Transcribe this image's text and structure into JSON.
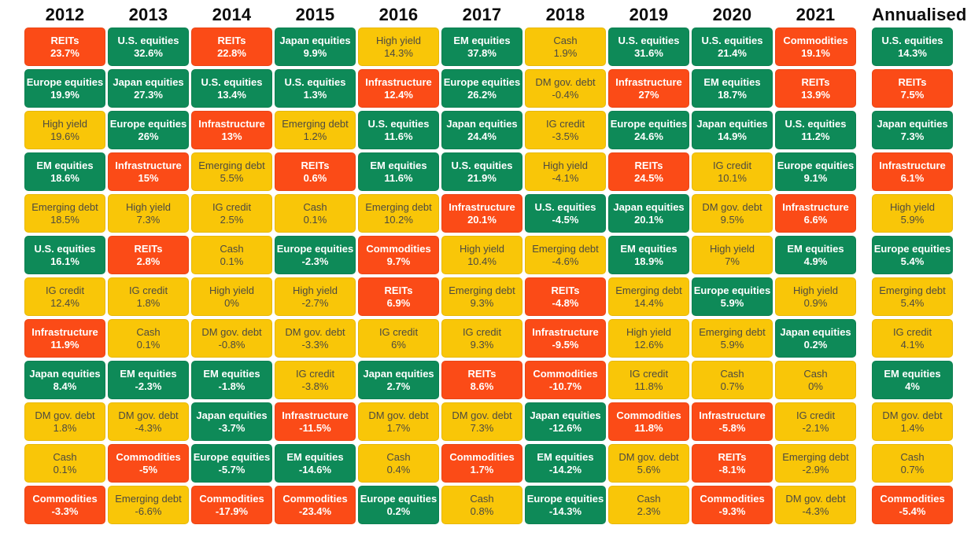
{
  "chart_data": {
    "type": "table",
    "description": "Asset class total returns by calendar year, ranked best to worst within each column",
    "palette": {
      "green": "#0E8A58",
      "yellow": "#F9C608",
      "orange": "#FB4B17",
      "dark_text": "#4D4A41",
      "header_text": "#0D0D0D"
    },
    "asset_categories": {
      "U.S. equities": "green",
      "Europe equities": "green",
      "Japan equities": "green",
      "EM equities": "green",
      "High yield": "yellow",
      "Emerging debt": "yellow",
      "IG credit": "yellow",
      "DM gov. debt": "yellow",
      "Cash": "yellow",
      "REITs": "orange",
      "Infrastructure": "orange",
      "Commodities": "orange"
    },
    "columns": [
      {
        "label": "2012",
        "annualised": false,
        "cells": [
          {
            "name": "REITs",
            "value": "23.7%"
          },
          {
            "name": "Europe equities",
            "value": "19.9%"
          },
          {
            "name": "High yield",
            "value": "19.6%"
          },
          {
            "name": "EM equities",
            "value": "18.6%"
          },
          {
            "name": "Emerging debt",
            "value": "18.5%"
          },
          {
            "name": "U.S. equities",
            "value": "16.1%"
          },
          {
            "name": "IG credit",
            "value": "12.4%"
          },
          {
            "name": "Infrastructure",
            "value": "11.9%"
          },
          {
            "name": "Japan equities",
            "value": "8.4%"
          },
          {
            "name": "DM gov. debt",
            "value": "1.8%"
          },
          {
            "name": "Cash",
            "value": "0.1%"
          },
          {
            "name": "Commodities",
            "value": "-3.3%"
          }
        ]
      },
      {
        "label": "2013",
        "annualised": false,
        "cells": [
          {
            "name": "U.S. equities",
            "value": "32.6%"
          },
          {
            "name": "Japan equities",
            "value": "27.3%"
          },
          {
            "name": "Europe equities",
            "value": "26%"
          },
          {
            "name": "Infrastructure",
            "value": "15%"
          },
          {
            "name": "High yield",
            "value": "7.3%"
          },
          {
            "name": "REITs",
            "value": "2.8%"
          },
          {
            "name": "IG credit",
            "value": "1.8%"
          },
          {
            "name": "Cash",
            "value": "0.1%"
          },
          {
            "name": "EM equities",
            "value": "-2.3%"
          },
          {
            "name": "DM gov. debt",
            "value": "-4.3%"
          },
          {
            "name": "Commodities",
            "value": "-5%"
          },
          {
            "name": "Emerging debt",
            "value": "-6.6%"
          }
        ]
      },
      {
        "label": "2014",
        "annualised": false,
        "cells": [
          {
            "name": "REITs",
            "value": "22.8%"
          },
          {
            "name": "U.S. equities",
            "value": "13.4%"
          },
          {
            "name": "Infrastructure",
            "value": "13%"
          },
          {
            "name": "Emerging debt",
            "value": "5.5%"
          },
          {
            "name": "IG credit",
            "value": "2.5%"
          },
          {
            "name": "Cash",
            "value": "0.1%"
          },
          {
            "name": "High yield",
            "value": "0%"
          },
          {
            "name": "DM gov. debt",
            "value": "-0.8%"
          },
          {
            "name": "EM equities",
            "value": "-1.8%"
          },
          {
            "name": "Japan equities",
            "value": "-3.7%"
          },
          {
            "name": "Europe equities",
            "value": "-5.7%"
          },
          {
            "name": "Commodities",
            "value": "-17.9%"
          }
        ]
      },
      {
        "label": "2015",
        "annualised": false,
        "cells": [
          {
            "name": "Japan equities",
            "value": "9.9%"
          },
          {
            "name": "U.S. equities",
            "value": "1.3%"
          },
          {
            "name": "Emerging debt",
            "value": "1.2%"
          },
          {
            "name": "REITs",
            "value": "0.6%"
          },
          {
            "name": "Cash",
            "value": "0.1%"
          },
          {
            "name": "Europe equities",
            "value": "-2.3%"
          },
          {
            "name": "High yield",
            "value": "-2.7%"
          },
          {
            "name": "DM gov. debt",
            "value": "-3.3%"
          },
          {
            "name": "IG credit",
            "value": "-3.8%"
          },
          {
            "name": "Infrastructure",
            "value": "-11.5%"
          },
          {
            "name": "EM equities",
            "value": "-14.6%"
          },
          {
            "name": "Commodities",
            "value": "-23.4%"
          }
        ]
      },
      {
        "label": "2016",
        "annualised": false,
        "cells": [
          {
            "name": "High yield",
            "value": "14.3%"
          },
          {
            "name": "Infrastructure",
            "value": "12.4%"
          },
          {
            "name": "U.S. equities",
            "value": "11.6%"
          },
          {
            "name": "EM equities",
            "value": "11.6%"
          },
          {
            "name": "Emerging debt",
            "value": "10.2%"
          },
          {
            "name": "Commodities",
            "value": "9.7%"
          },
          {
            "name": "REITs",
            "value": "6.9%"
          },
          {
            "name": "IG credit",
            "value": "6%"
          },
          {
            "name": "Japan equities",
            "value": "2.7%"
          },
          {
            "name": "DM gov. debt",
            "value": "1.7%"
          },
          {
            "name": "Cash",
            "value": "0.4%"
          },
          {
            "name": "Europe equities",
            "value": "0.2%"
          }
        ]
      },
      {
        "label": "2017",
        "annualised": false,
        "cells": [
          {
            "name": "EM equities",
            "value": "37.8%"
          },
          {
            "name": "Europe equities",
            "value": "26.2%"
          },
          {
            "name": "Japan equities",
            "value": "24.4%"
          },
          {
            "name": "U.S. equities",
            "value": "21.9%"
          },
          {
            "name": "Infrastructure",
            "value": "20.1%"
          },
          {
            "name": "High yield",
            "value": "10.4%"
          },
          {
            "name": "Emerging debt",
            "value": "9.3%"
          },
          {
            "name": "IG credit",
            "value": "9.3%"
          },
          {
            "name": "REITs",
            "value": "8.6%"
          },
          {
            "name": "DM gov. debt",
            "value": "7.3%"
          },
          {
            "name": "Commodities",
            "value": "1.7%"
          },
          {
            "name": "Cash",
            "value": "0.8%"
          }
        ]
      },
      {
        "label": "2018",
        "annualised": false,
        "cells": [
          {
            "name": "Cash",
            "value": "1.9%"
          },
          {
            "name": "DM gov. debt",
            "value": "-0.4%"
          },
          {
            "name": "IG credit",
            "value": "-3.5%"
          },
          {
            "name": "High yield",
            "value": "-4.1%"
          },
          {
            "name": "U.S. equities",
            "value": "-4.5%"
          },
          {
            "name": "Emerging debt",
            "value": "-4.6%"
          },
          {
            "name": "REITs",
            "value": "-4.8%"
          },
          {
            "name": "Infrastructure",
            "value": "-9.5%"
          },
          {
            "name": "Commodities",
            "value": "-10.7%"
          },
          {
            "name": "Japan equities",
            "value": "-12.6%"
          },
          {
            "name": "EM equities",
            "value": "-14.2%"
          },
          {
            "name": "Europe equities",
            "value": "-14.3%"
          }
        ]
      },
      {
        "label": "2019",
        "annualised": false,
        "cells": [
          {
            "name": "U.S. equities",
            "value": "31.6%"
          },
          {
            "name": "Infrastructure",
            "value": "27%"
          },
          {
            "name": "Europe equities",
            "value": "24.6%"
          },
          {
            "name": "REITs",
            "value": "24.5%"
          },
          {
            "name": "Japan equities",
            "value": "20.1%"
          },
          {
            "name": "EM equities",
            "value": "18.9%"
          },
          {
            "name": "Emerging debt",
            "value": "14.4%"
          },
          {
            "name": "High yield",
            "value": "12.6%"
          },
          {
            "name": "IG credit",
            "value": "11.8%"
          },
          {
            "name": "Commodities",
            "value": "11.8%"
          },
          {
            "name": "DM gov. debt",
            "value": "5.6%"
          },
          {
            "name": "Cash",
            "value": "2.3%"
          }
        ]
      },
      {
        "label": "2020",
        "annualised": false,
        "cells": [
          {
            "name": "U.S. equities",
            "value": "21.4%"
          },
          {
            "name": "EM equities",
            "value": "18.7%"
          },
          {
            "name": "Japan equities",
            "value": "14.9%"
          },
          {
            "name": "IG credit",
            "value": "10.1%"
          },
          {
            "name": "DM gov. debt",
            "value": "9.5%"
          },
          {
            "name": "High yield",
            "value": "7%"
          },
          {
            "name": "Europe equities",
            "value": "5.9%"
          },
          {
            "name": "Emerging debt",
            "value": "5.9%"
          },
          {
            "name": "Cash",
            "value": "0.7%"
          },
          {
            "name": "Infrastructure",
            "value": "-5.8%"
          },
          {
            "name": "REITs",
            "value": "-8.1%"
          },
          {
            "name": "Commodities",
            "value": "-9.3%"
          }
        ]
      },
      {
        "label": "2021",
        "annualised": false,
        "cells": [
          {
            "name": "Commodities",
            "value": "19.1%"
          },
          {
            "name": "REITs",
            "value": "13.9%"
          },
          {
            "name": "U.S. equities",
            "value": "11.2%"
          },
          {
            "name": "Europe equities",
            "value": "9.1%"
          },
          {
            "name": "Infrastructure",
            "value": "6.6%"
          },
          {
            "name": "EM equities",
            "value": "4.9%"
          },
          {
            "name": "High yield",
            "value": "0.9%"
          },
          {
            "name": "Japan equities",
            "value": "0.2%"
          },
          {
            "name": "Cash",
            "value": "0%"
          },
          {
            "name": "IG credit",
            "value": "-2.1%"
          },
          {
            "name": "Emerging debt",
            "value": "-2.9%"
          },
          {
            "name": "DM gov. debt",
            "value": "-4.3%"
          }
        ]
      },
      {
        "label": "Annualised",
        "annualised": true,
        "cells": [
          {
            "name": "U.S. equities",
            "value": "14.3%"
          },
          {
            "name": "REITs",
            "value": "7.5%"
          },
          {
            "name": "Japan equities",
            "value": "7.3%"
          },
          {
            "name": "Infrastructure",
            "value": "6.1%"
          },
          {
            "name": "High yield",
            "value": "5.9%"
          },
          {
            "name": "Europe equities",
            "value": "5.4%"
          },
          {
            "name": "Emerging debt",
            "value": "5.4%"
          },
          {
            "name": "IG credit",
            "value": "4.1%"
          },
          {
            "name": "EM equities",
            "value": "4%"
          },
          {
            "name": "DM gov. debt",
            "value": "1.4%"
          },
          {
            "name": "Cash",
            "value": "0.7%"
          },
          {
            "name": "Commodities",
            "value": "-5.4%"
          }
        ]
      }
    ]
  }
}
